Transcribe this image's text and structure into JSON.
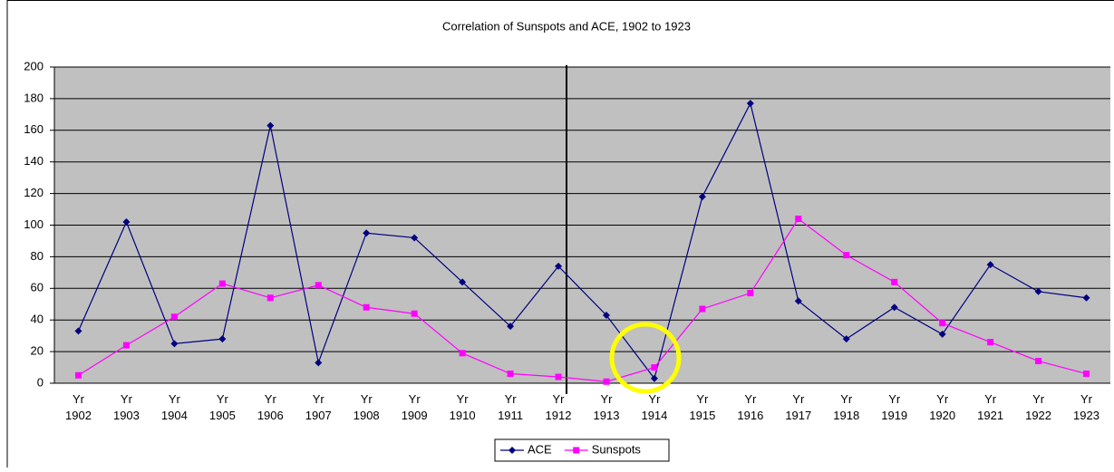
{
  "chart_data": {
    "type": "line",
    "title": "Correlation of Sunspots and ACE, 1902 to 1923",
    "categories": [
      "Yr 1902",
      "Yr 1903",
      "Yr 1904",
      "Yr 1905",
      "Yr 1906",
      "Yr 1907",
      "Yr 1908",
      "Yr 1909",
      "Yr 1910",
      "Yr 1911",
      "Yr 1912",
      "Yr 1913",
      "Yr 1914",
      "Yr 1915",
      "Yr 1916",
      "Yr 1917",
      "Yr 1918",
      "Yr 1919",
      "Yr 1920",
      "Yr 1921",
      "Yr 1922",
      "Yr 1923"
    ],
    "series": [
      {
        "name": "ACE",
        "color": "#000080",
        "values": [
          33,
          102,
          25,
          28,
          163,
          13,
          95,
          92,
          64,
          36,
          74,
          43,
          3,
          118,
          177,
          52,
          28,
          48,
          31,
          75,
          58,
          54
        ]
      },
      {
        "name": "Sunspots",
        "color": "#ff00ff",
        "values": [
          5,
          24,
          42,
          63,
          54,
          62,
          48,
          44,
          19,
          6,
          4,
          1,
          10,
          47,
          57,
          104,
          81,
          64,
          38,
          26,
          14,
          6
        ]
      }
    ],
    "ylim": [
      0,
      200
    ],
    "yticks": [
      0,
      20,
      40,
      60,
      80,
      100,
      120,
      140,
      160,
      180,
      200
    ],
    "grid": true,
    "legend": "bottom"
  }
}
